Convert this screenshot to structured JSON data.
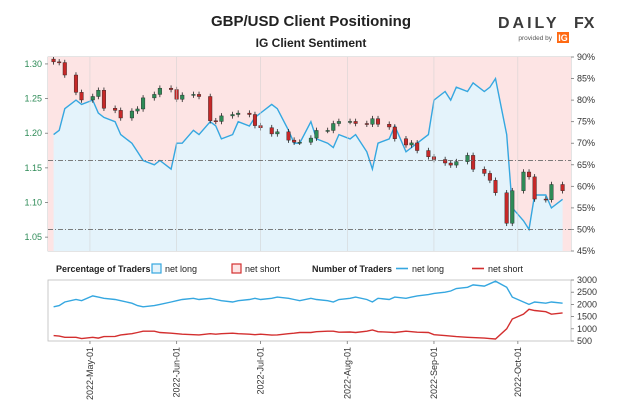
{
  "header": {
    "title": "GBP/USD Client Positioning",
    "subtitle": "IG Client Sentiment"
  },
  "brand": {
    "name_prefix": "DAILY",
    "name_suffix": "FX",
    "provided_by": "provided by",
    "partner": "IG"
  },
  "colors": {
    "price_up": "#2e8b57",
    "price_down": "#c62828",
    "net_long_line": "#35a7e0",
    "net_short_line": "#d32f2f",
    "long_fill": "#e4f3fb",
    "short_fill": "#fde4e4",
    "threshold_line": "#6b6b6b",
    "accent": "#ff6a13"
  },
  "legend": {
    "percentage_heading": "Percentage of Traders",
    "percentage_long": "net long",
    "percentage_short": "net short",
    "number_heading": "Number of Traders",
    "number_long": "net long",
    "number_short": "net short"
  },
  "chart_data": [
    {
      "type": "candlestick",
      "name": "GBP/USD price",
      "axis": "left",
      "ylim": [
        1.03,
        1.31
      ],
      "yticks": [
        "1.30",
        "1.25",
        "1.20",
        "1.15",
        "1.10",
        "1.05"
      ],
      "x": [
        "2022-04-18",
        "2022-04-20",
        "2022-04-22",
        "2022-04-26",
        "2022-04-28",
        "2022-05-02",
        "2022-05-04",
        "2022-05-06",
        "2022-05-10",
        "2022-05-12",
        "2022-05-16",
        "2022-05-18",
        "2022-05-20",
        "2022-05-24",
        "2022-05-26",
        "2022-05-30",
        "2022-06-01",
        "2022-06-03",
        "2022-06-07",
        "2022-06-09",
        "2022-06-13",
        "2022-06-15",
        "2022-06-17",
        "2022-06-21",
        "2022-06-23",
        "2022-06-27",
        "2022-06-29",
        "2022-07-01",
        "2022-07-05",
        "2022-07-07",
        "2022-07-11",
        "2022-07-13",
        "2022-07-15",
        "2022-07-19",
        "2022-07-21",
        "2022-07-25",
        "2022-07-27",
        "2022-07-29",
        "2022-08-02",
        "2022-08-04",
        "2022-08-08",
        "2022-08-10",
        "2022-08-12",
        "2022-08-16",
        "2022-08-18",
        "2022-08-22",
        "2022-08-24",
        "2022-08-26",
        "2022-08-30",
        "2022-09-01",
        "2022-09-05",
        "2022-09-07",
        "2022-09-09",
        "2022-09-13",
        "2022-09-15",
        "2022-09-19",
        "2022-09-21",
        "2022-09-23",
        "2022-09-27",
        "2022-09-29",
        "2022-10-03",
        "2022-10-05",
        "2022-10-07",
        "2022-10-11",
        "2022-10-13",
        "2022-10-17"
      ],
      "close": [
        1.303,
        1.302,
        1.284,
        1.259,
        1.248,
        1.253,
        1.262,
        1.236,
        1.233,
        1.222,
        1.232,
        1.235,
        1.251,
        1.256,
        1.265,
        1.263,
        1.249,
        1.255,
        1.256,
        1.253,
        1.218,
        1.217,
        1.225,
        1.227,
        1.229,
        1.227,
        1.211,
        1.208,
        1.199,
        1.202,
        1.19,
        1.187,
        1.187,
        1.193,
        1.204,
        1.204,
        1.214,
        1.217,
        1.217,
        1.214,
        1.213,
        1.221,
        1.213,
        1.209,
        1.192,
        1.183,
        1.186,
        1.175,
        1.166,
        1.162,
        1.157,
        1.154,
        1.159,
        1.168,
        1.148,
        1.142,
        1.132,
        1.114,
        1.07,
        1.117,
        1.144,
        1.137,
        1.105,
        1.104,
        1.126,
        1.117
      ]
    },
    {
      "type": "area",
      "name": "Percentage of Traders net long",
      "axis": "right",
      "ylim": [
        45,
        90
      ],
      "yticks": [
        "90%",
        "85%",
        "80%",
        "75%",
        "70%",
        "65%",
        "60%",
        "55%",
        "50%",
        "45%"
      ],
      "thresholds": [
        50,
        66
      ],
      "x": [
        "2022-04-18",
        "2022-04-20",
        "2022-04-22",
        "2022-04-26",
        "2022-04-28",
        "2022-05-02",
        "2022-05-04",
        "2022-05-06",
        "2022-05-10",
        "2022-05-12",
        "2022-05-16",
        "2022-05-18",
        "2022-05-20",
        "2022-05-24",
        "2022-05-26",
        "2022-05-30",
        "2022-06-01",
        "2022-06-03",
        "2022-06-07",
        "2022-06-09",
        "2022-06-13",
        "2022-06-15",
        "2022-06-17",
        "2022-06-21",
        "2022-06-23",
        "2022-06-27",
        "2022-06-29",
        "2022-07-01",
        "2022-07-05",
        "2022-07-07",
        "2022-07-11",
        "2022-07-13",
        "2022-07-15",
        "2022-07-19",
        "2022-07-21",
        "2022-07-25",
        "2022-07-27",
        "2022-07-29",
        "2022-08-02",
        "2022-08-04",
        "2022-08-08",
        "2022-08-10",
        "2022-08-12",
        "2022-08-16",
        "2022-08-18",
        "2022-08-22",
        "2022-08-24",
        "2022-08-26",
        "2022-08-30",
        "2022-09-01",
        "2022-09-05",
        "2022-09-07",
        "2022-09-09",
        "2022-09-13",
        "2022-09-15",
        "2022-09-19",
        "2022-09-21",
        "2022-09-23",
        "2022-09-27",
        "2022-09-29",
        "2022-10-03",
        "2022-10-05",
        "2022-10-07",
        "2022-10-11",
        "2022-10-13",
        "2022-10-17"
      ],
      "values": [
        72,
        73,
        78,
        80,
        79,
        80,
        77,
        76,
        75,
        72,
        70,
        68,
        66,
        65,
        66,
        64,
        70,
        70,
        73,
        72,
        75,
        74,
        71,
        72,
        75,
        74,
        76,
        77,
        79,
        78,
        73,
        70,
        70,
        75,
        71,
        70,
        69,
        72,
        71,
        72,
        68,
        64,
        70,
        71,
        74,
        68,
        69,
        70,
        72,
        80,
        82,
        80,
        83,
        82,
        84,
        82,
        83,
        85,
        72,
        55,
        52,
        50,
        58,
        58,
        55,
        57
      ]
    },
    {
      "type": "line",
      "name": "Number of Traders",
      "axis": "right",
      "ylim": [
        500,
        3000
      ],
      "yticks": [
        "3000",
        "2500",
        "2000",
        "1500",
        "1000",
        "500"
      ],
      "x": [
        "2022-04-18",
        "2022-04-20",
        "2022-04-22",
        "2022-04-26",
        "2022-04-28",
        "2022-05-02",
        "2022-05-04",
        "2022-05-06",
        "2022-05-10",
        "2022-05-12",
        "2022-05-16",
        "2022-05-18",
        "2022-05-20",
        "2022-05-24",
        "2022-05-26",
        "2022-05-30",
        "2022-06-01",
        "2022-06-03",
        "2022-06-07",
        "2022-06-09",
        "2022-06-13",
        "2022-06-15",
        "2022-06-17",
        "2022-06-21",
        "2022-06-23",
        "2022-06-27",
        "2022-06-29",
        "2022-07-01",
        "2022-07-05",
        "2022-07-07",
        "2022-07-11",
        "2022-07-13",
        "2022-07-15",
        "2022-07-19",
        "2022-07-21",
        "2022-07-25",
        "2022-07-27",
        "2022-07-29",
        "2022-08-02",
        "2022-08-04",
        "2022-08-08",
        "2022-08-10",
        "2022-08-12",
        "2022-08-16",
        "2022-08-18",
        "2022-08-22",
        "2022-08-24",
        "2022-08-26",
        "2022-08-30",
        "2022-09-01",
        "2022-09-05",
        "2022-09-07",
        "2022-09-09",
        "2022-09-13",
        "2022-09-15",
        "2022-09-19",
        "2022-09-21",
        "2022-09-23",
        "2022-09-27",
        "2022-09-29",
        "2022-10-03",
        "2022-10-05",
        "2022-10-07",
        "2022-10-11",
        "2022-10-13",
        "2022-10-17"
      ],
      "series": [
        {
          "name": "net long",
          "values": [
            1900,
            1950,
            2100,
            2200,
            2150,
            2350,
            2300,
            2250,
            2200,
            2150,
            2050,
            1950,
            1900,
            1950,
            2000,
            2100,
            2150,
            2200,
            2250,
            2200,
            2250,
            2200,
            2150,
            2100,
            2150,
            2200,
            2250,
            2200,
            2250,
            2300,
            2250,
            2200,
            2150,
            2250,
            2200,
            2150,
            2100,
            2200,
            2250,
            2300,
            2200,
            2100,
            2250,
            2200,
            2300,
            2250,
            2300,
            2350,
            2400,
            2450,
            2500,
            2550,
            2650,
            2700,
            2800,
            2750,
            2850,
            2950,
            2700,
            2300,
            2100,
            2000,
            2100,
            2050,
            2100,
            2050
          ]
        },
        {
          "name": "net short",
          "values": [
            720,
            700,
            650,
            650,
            600,
            650,
            620,
            680,
            690,
            750,
            800,
            850,
            900,
            900,
            850,
            820,
            800,
            780,
            760,
            750,
            800,
            780,
            800,
            820,
            800,
            780,
            760,
            780,
            740,
            750,
            800,
            820,
            850,
            850,
            880,
            900,
            900,
            860,
            870,
            850,
            900,
            950,
            880,
            860,
            850,
            900,
            880,
            860,
            850,
            760,
            720,
            700,
            680,
            650,
            640,
            620,
            600,
            580,
            1000,
            1400,
            1600,
            1800,
            1750,
            1700,
            1600,
            1650
          ]
        }
      ]
    }
  ],
  "x_axis": {
    "tick_dates": [
      "2022-05-01",
      "2022-06-01",
      "2022-07-01",
      "2022-08-01",
      "2022-09-01",
      "2022-10-01"
    ],
    "tick_labels": [
      "2022-May-01",
      "2022-Jun-01",
      "2022-Jul-01",
      "2022-Aug-01",
      "2022-Sep-01",
      "2022-Oct-01"
    ]
  }
}
